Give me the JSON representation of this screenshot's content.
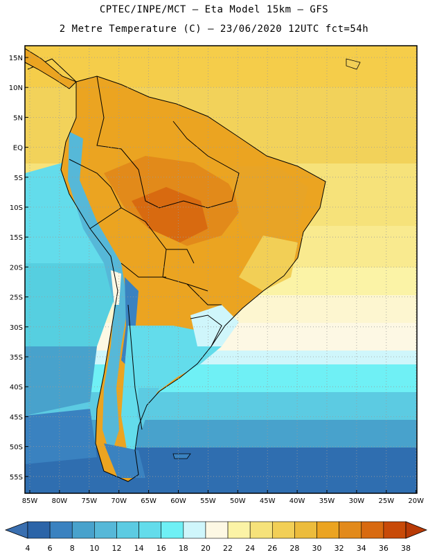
{
  "header": {
    "line1": "CPTEC/INPE/MCT –  Eta Model 15km – GFS",
    "line2": "2 Metre Temperature (C) – 23/06/2020 12UTC fct=54h"
  },
  "map": {
    "region": "South America",
    "lat_labels": [
      "15N",
      "10N",
      "5N",
      "EQ",
      "5S",
      "10S",
      "15S",
      "20S",
      "25S",
      "30S",
      "35S",
      "40S",
      "45S",
      "50S",
      "55S"
    ],
    "lon_labels": [
      "85W",
      "80W",
      "75W",
      "70W",
      "65W",
      "60W",
      "55W",
      "50W",
      "45W",
      "40W",
      "35W",
      "30W",
      "25W",
      "20W"
    ],
    "lat_range_deg": [
      -58,
      17
    ],
    "lon_range_deg": [
      -86,
      -20
    ],
    "grid": "dotted"
  },
  "legend": {
    "ticks": [
      "4",
      "6",
      "8",
      "10",
      "12",
      "14",
      "16",
      "18",
      "20",
      "22",
      "24",
      "26",
      "28",
      "30",
      "32",
      "34",
      "36",
      "38"
    ],
    "colors": [
      "#2b64a8",
      "#3a82c0",
      "#48a2cc",
      "#56b8d8",
      "#5ccbe2",
      "#63dceb",
      "#6ff0f5",
      "#cff6fb",
      "#fdf8e4",
      "#fbf3a6",
      "#f6e27a",
      "#f2cf56",
      "#ecbc3c",
      "#eba421",
      "#e28a1a",
      "#d86a10",
      "#c84a08"
    ],
    "under_color": "#3a6fb0",
    "over_color": "#b83a06"
  }
}
